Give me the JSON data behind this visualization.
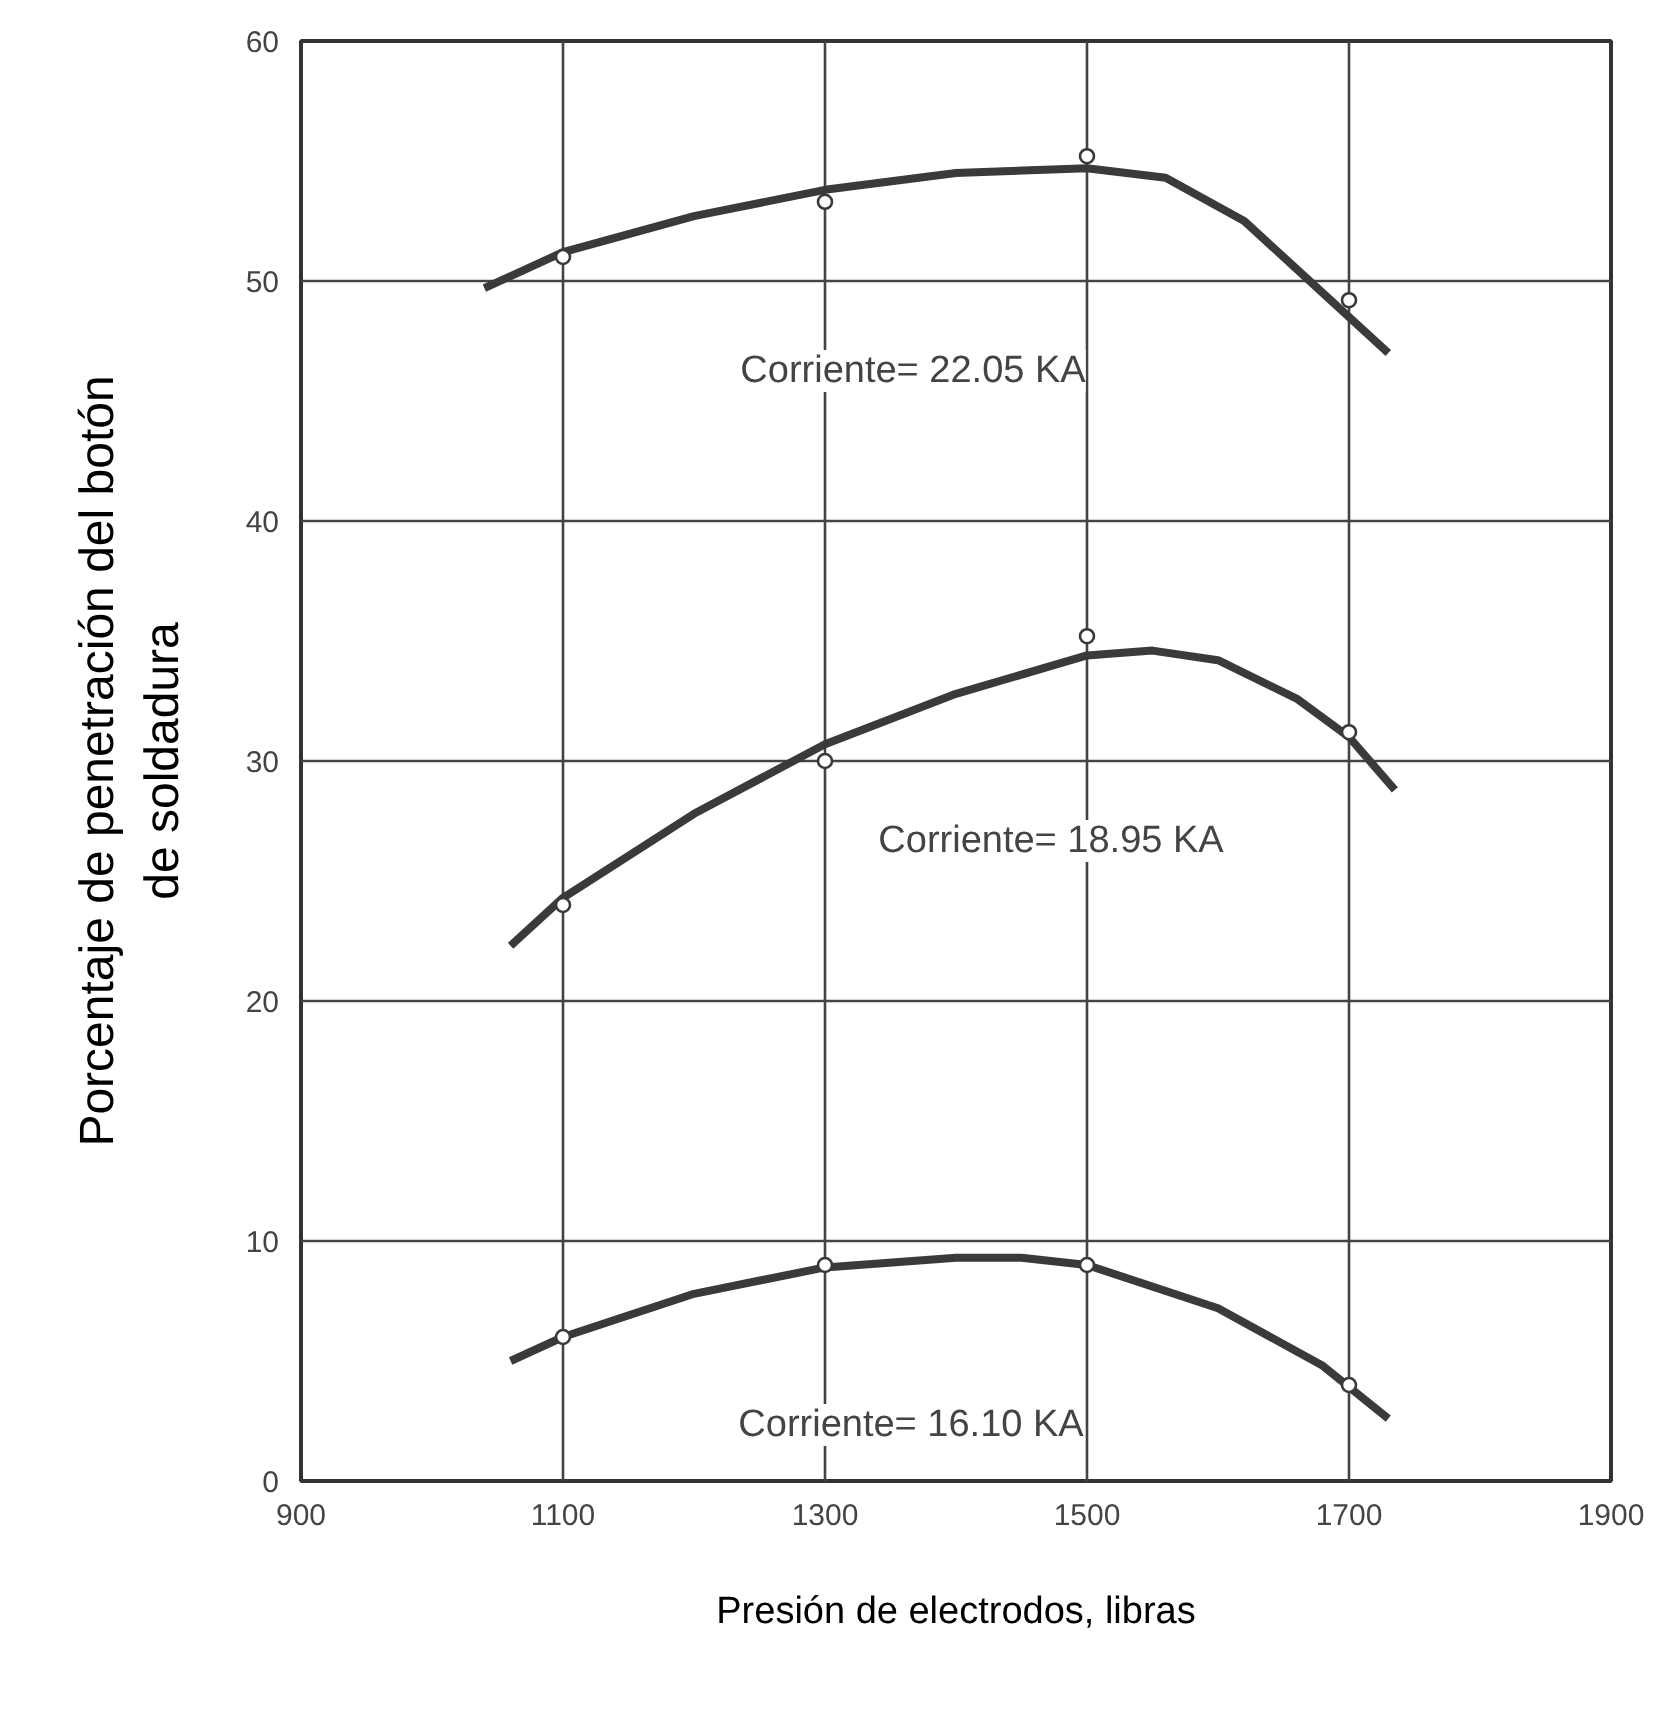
{
  "chart_data": {
    "type": "line",
    "xlabel": "Presión de electrodos, libras",
    "ylabel": "Porcentaje de penetración del botón\nde soldadura",
    "xlim": [
      900,
      1900
    ],
    "ylim": [
      0,
      60
    ],
    "xticks": [
      900,
      1100,
      1300,
      1500,
      1700,
      1900
    ],
    "yticks": [
      0,
      10,
      20,
      30,
      40,
      50,
      60
    ],
    "grid": true,
    "series": [
      {
        "color": "#3a3a3a",
        "line_style": "solid",
        "x": [
          1040,
          1100,
          1200,
          1300,
          1400,
          1500,
          1560,
          1620,
          1680,
          1730
        ],
        "values": [
          49.7,
          51.2,
          52.7,
          53.8,
          54.5,
          54.7,
          54.3,
          52.5,
          49.5,
          47
        ]
      },
      {
        "type": "scatter",
        "marker": "circle",
        "color": "#3a3a3a",
        "x": [
          1100,
          1300,
          1500,
          1700
        ],
        "values": [
          51,
          53.3,
          55.2,
          49.2
        ]
      },
      {
        "color": "#3a3a3a",
        "line_style": "solid",
        "x": [
          1060,
          1100,
          1200,
          1300,
          1400,
          1500,
          1550,
          1600,
          1660,
          1700,
          1735
        ],
        "values": [
          22.3,
          24.3,
          27.8,
          30.7,
          32.8,
          34.4,
          34.6,
          34.2,
          32.6,
          31,
          28.8
        ]
      },
      {
        "type": "scatter",
        "marker": "circle",
        "color": "#3a3a3a",
        "x": [
          1100,
          1300,
          1500,
          1700
        ],
        "values": [
          24,
          30,
          35.2,
          31.2
        ]
      },
      {
        "color": "#3a3a3a",
        "line_style": "solid",
        "x": [
          1060,
          1100,
          1200,
          1300,
          1400,
          1450,
          1500,
          1600,
          1680,
          1730
        ],
        "values": [
          5,
          6,
          7.8,
          8.9,
          9.3,
          9.3,
          9,
          7.2,
          4.8,
          2.6
        ]
      },
      {
        "type": "scatter",
        "marker": "circle",
        "color": "#3a3a3a",
        "x": [
          1100,
          1300,
          1500,
          1700
        ],
        "values": [
          6,
          9,
          9,
          4
        ]
      }
    ],
    "annotations": [
      "Corriente= 22.05 KA",
      "Corriente= 18.95 KA",
      "Corriente= 16.10 KA"
    ]
  }
}
